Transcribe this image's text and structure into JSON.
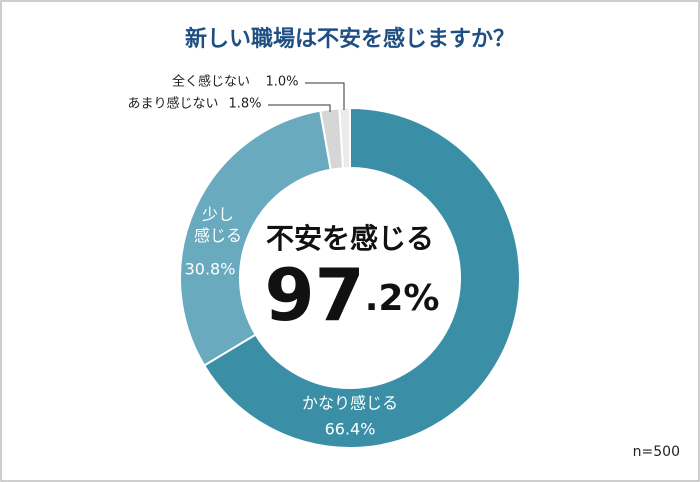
{
  "chart_data": {
    "type": "donut",
    "title": "新しい職場は不安を感じますか？",
    "categories": [
      "かなり感じる",
      "少し\n感じる",
      "あまり感じない",
      "全く感じない"
    ],
    "values": [
      66.4,
      30.8,
      1.8,
      1.0
    ],
    "value_labels": [
      "66.4%",
      "30.8%",
      "1.8%",
      "1.0%"
    ],
    "colors": [
      "#3a8fa6",
      "#6aaabf",
      "#d6d6d6",
      "#ebebeb"
    ],
    "center": {
      "label": "不安を感じる",
      "value": 97.2,
      "value_label": "97.2%"
    },
    "note": "n=500"
  }
}
